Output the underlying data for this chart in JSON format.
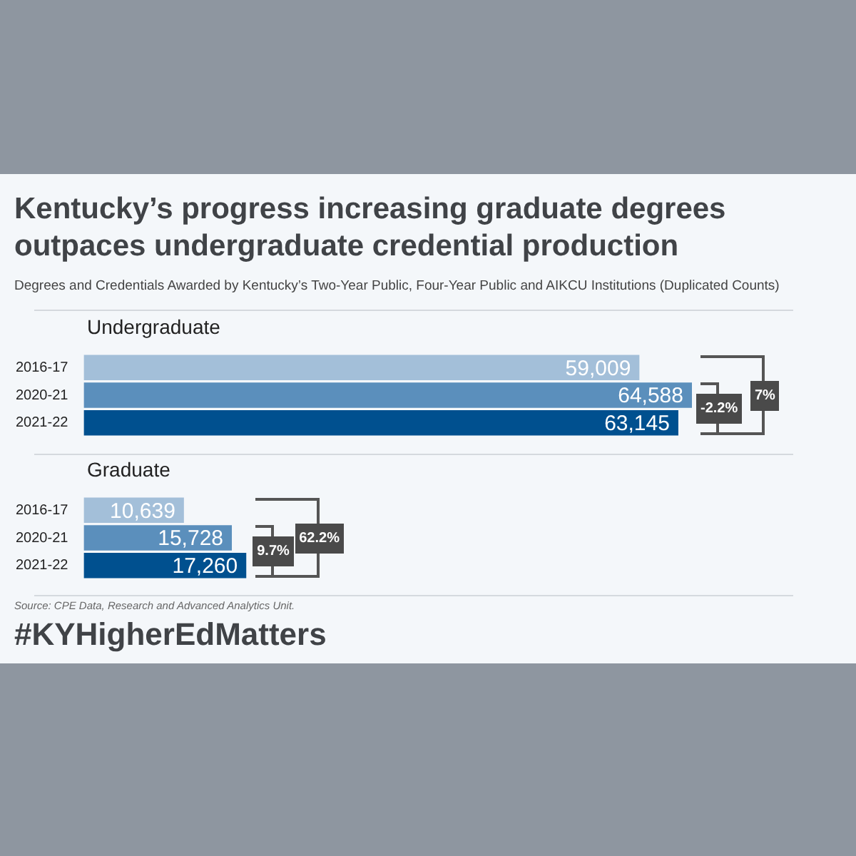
{
  "chart_data": [
    {
      "type": "other",
      "title": "Kentucky’s progress increasing graduate degrees outpaces undergraduate credential production",
      "subtitle": "Degrees and Credentials Awarded by Kentucky’s Two-Year Public, Four-Year Public and AIKCU Institutions (Duplicated Counts)"
    },
    {
      "type": "bar",
      "orientation": "horizontal",
      "title": "Undergraduate",
      "categories": [
        "2016-17",
        "2020-21",
        "2021-22"
      ],
      "values": [
        59009,
        64588,
        63145
      ],
      "value_labels": [
        "59,009",
        "64,588",
        "63,145"
      ],
      "colors": [
        "#a3bfd9",
        "#5b8fbc",
        "#00508f"
      ],
      "tick_labels": "y",
      "annotations": [
        "-2.2%",
        "7%"
      ]
    },
    {
      "type": "bar",
      "orientation": "horizontal",
      "title": "Graduate",
      "categories": [
        "2016-17",
        "2020-21",
        "2021-22"
      ],
      "values": [
        10639,
        15728,
        17260
      ],
      "value_labels": [
        "10,639",
        "15,728",
        "17,260"
      ],
      "colors": [
        "#a3bfd9",
        "#5b8fbc",
        "#00508f"
      ],
      "tick_labels": "y",
      "annotations": [
        "9.7%",
        "62.2%"
      ]
    },
    {
      "type": "other",
      "annotations": [
        "Source: CPE Data, Research and Advanced Analytics Unit.",
        "#KYHigherEdMatters"
      ]
    }
  ]
}
